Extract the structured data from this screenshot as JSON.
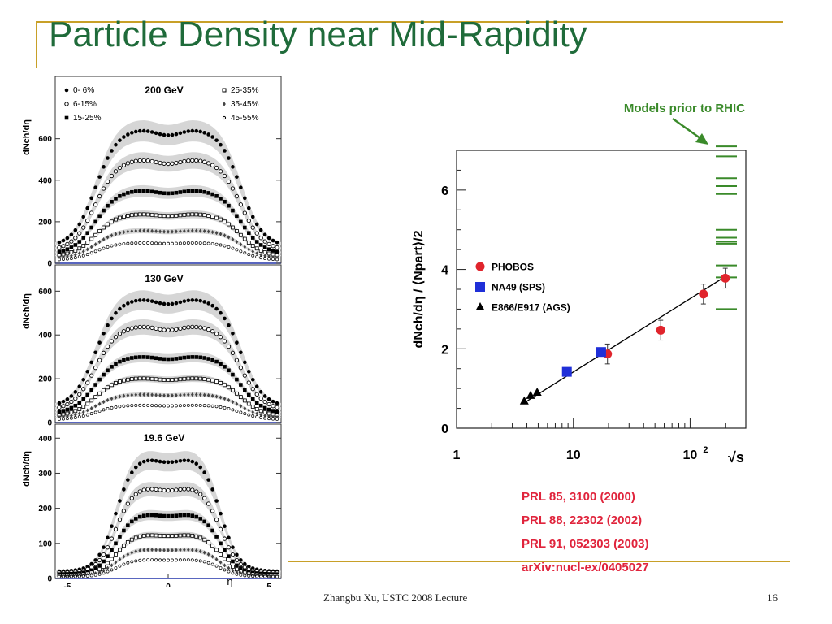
{
  "slide": {
    "title": "Particle Density near Mid-Rapidity",
    "footer_text": "Zhangbu Xu, USTC 2008 Lecture",
    "page_number": "16",
    "accent_color": "#c8a028",
    "title_color": "#1f6b3a"
  },
  "references": [
    "PRL 85, 3100 (2000)",
    "PRL 88, 22302 (2002)",
    "PRL 91, 052303 (2003)",
    "arXiv:nucl-ex/0405027"
  ],
  "chart_data": [
    {
      "type": "scatter",
      "panel": "200 GeV",
      "title": "200 GeV",
      "ylabel": "dNch/dη",
      "xlim": [
        -5.6,
        5.6
      ],
      "ylim": [
        0,
        900
      ],
      "yticks": [
        0,
        200,
        400,
        600
      ],
      "legend": [
        {
          "label": "0- 6%",
          "marker": "filled-circle"
        },
        {
          "label": "6-15%",
          "marker": "open-circle"
        },
        {
          "label": "15-25%",
          "marker": "filled-square"
        },
        {
          "label": "25-35%",
          "marker": "open-square"
        },
        {
          "label": "35-45%",
          "marker": "diamond"
        },
        {
          "label": "45-55%",
          "marker": "small-circle"
        }
      ],
      "series": [
        {
          "marker": "filled-circle",
          "plateau": 650,
          "edge": 80
        },
        {
          "marker": "open-circle",
          "plateau": 505,
          "edge": 60
        },
        {
          "marker": "filled-square",
          "plateau": 355,
          "edge": 45
        },
        {
          "marker": "open-square",
          "plateau": 240,
          "edge": 32
        },
        {
          "marker": "diamond",
          "plateau": 160,
          "edge": 22
        },
        {
          "marker": "small-circle",
          "plateau": 100,
          "edge": 15
        }
      ]
    },
    {
      "type": "scatter",
      "panel": "130 GeV",
      "title": "130 GeV",
      "ylabel": "dNch/dη",
      "xlim": [
        -5.6,
        5.6
      ],
      "ylim": [
        0,
        720
      ],
      "yticks": [
        0,
        200,
        400,
        600
      ],
      "series": [
        {
          "marker": "filled-circle",
          "plateau": 570,
          "edge": 70
        },
        {
          "marker": "open-circle",
          "plateau": 445,
          "edge": 55
        },
        {
          "marker": "filled-square",
          "plateau": 305,
          "edge": 40
        },
        {
          "marker": "open-square",
          "plateau": 205,
          "edge": 28
        },
        {
          "marker": "diamond",
          "plateau": 130,
          "edge": 20
        },
        {
          "marker": "small-circle",
          "plateau": 80,
          "edge": 13
        }
      ]
    },
    {
      "type": "scatter",
      "panel": "19.6 GeV",
      "title": "19.6 GeV",
      "ylabel": "dNch/dη",
      "xlabel": "η",
      "xlim": [
        -5.6,
        5.6
      ],
      "ylim": [
        0,
        440
      ],
      "yticks": [
        0,
        100,
        200,
        300,
        400
      ],
      "xticks": [
        -5,
        0,
        5
      ],
      "series": [
        {
          "marker": "filled-circle",
          "plateau": 350,
          "edge": 20
        },
        {
          "marker": "open-circle",
          "plateau": 265,
          "edge": 16
        },
        {
          "marker": "filled-square",
          "plateau": 188,
          "edge": 12
        },
        {
          "marker": "open-square",
          "plateau": 128,
          "edge": 9
        },
        {
          "marker": "diamond",
          "plateau": 85,
          "edge": 7
        },
        {
          "marker": "small-circle",
          "plateau": 55,
          "edge": 5
        }
      ]
    },
    {
      "type": "scatter",
      "panel": "energy-dependence",
      "xlabel": "√s",
      "ylabel": "dNch/dη / ⟨Npart⟩/2",
      "xscale": "log",
      "xlim": [
        1,
        300
      ],
      "ylim": [
        0,
        7
      ],
      "xtick_labels": [
        "1",
        "10",
        "10²"
      ],
      "yticks": [
        0,
        2,
        4,
        6
      ],
      "annotation": "Models prior to RHIC",
      "annotation_color": "#3a8a2a",
      "series": [
        {
          "name": "PHOBOS",
          "marker": "circle",
          "color": "#e0242c",
          "points": [
            [
              19.6,
              1.87
            ],
            [
              56,
              2.47
            ],
            [
              130,
              3.38
            ],
            [
              200,
              3.78
            ]
          ]
        },
        {
          "name": "NA49 (SPS)",
          "marker": "square",
          "color": "#1f2fd8",
          "points": [
            [
              8.8,
              1.42
            ],
            [
              17.3,
              1.92
            ]
          ]
        },
        {
          "name": "E866/E917 (AGS)",
          "marker": "triangle",
          "color": "#000000",
          "points": [
            [
              3.8,
              0.68
            ],
            [
              4.3,
              0.82
            ],
            [
              4.9,
              0.9
            ]
          ]
        }
      ],
      "fit_line": [
        [
          3.8,
          0.64
        ],
        [
          200,
          3.82
        ]
      ],
      "model_predictions": [
        7.1,
        6.85,
        6.3,
        6.1,
        5.9,
        5.0,
        4.8,
        4.7,
        4.65,
        4.1,
        3.8,
        3.0
      ]
    }
  ]
}
